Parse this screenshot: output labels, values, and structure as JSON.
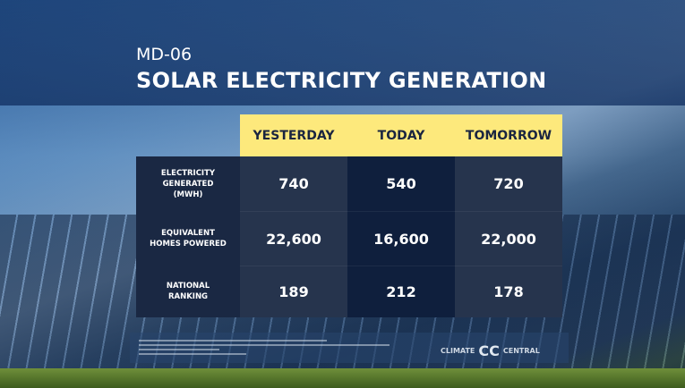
{
  "header": {
    "subtitle": "MD-06",
    "title": "SOLAR ELECTRICITY GENERATION"
  },
  "table": {
    "columns": [
      "YESTERDAY",
      "TODAY",
      "TOMORROW"
    ],
    "rows": [
      {
        "label": "ELECTRICITY GENERATED (MWH)",
        "values": [
          "740",
          "540",
          "720"
        ]
      },
      {
        "label": "EQUIVALENT HOMES POWERED",
        "values": [
          "22,600",
          "16,600",
          "22,000"
        ]
      },
      {
        "label": "NATIONAL RANKING",
        "values": [
          "189",
          "212",
          "178"
        ]
      }
    ]
  },
  "logo": {
    "left": "CLIMATE",
    "mark": "CC",
    "right": "CENTRAL"
  }
}
